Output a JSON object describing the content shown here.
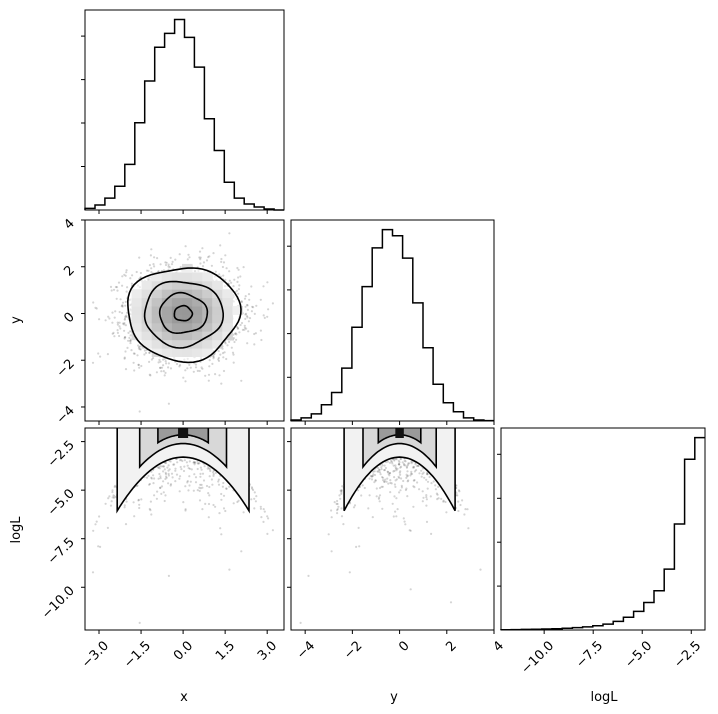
{
  "chart_data": {
    "type": "corner",
    "parameters": [
      "x",
      "y",
      "logL"
    ],
    "axis_labels": {
      "x": "x",
      "y": "y",
      "logL": "logL"
    },
    "ranges": {
      "x": [
        -3.5,
        3.6
      ],
      "y": [
        -4.6,
        4.0
      ],
      "logL": [
        -12.2,
        -1.8
      ]
    },
    "ticks": {
      "x": {
        "values": [
          -3.0,
          -1.5,
          0.0,
          1.5,
          3.0
        ],
        "labels": [
          "−3.0",
          "−1.5",
          "0.0",
          "1.5",
          "3.0"
        ]
      },
      "y": {
        "values": [
          -4,
          -2,
          0,
          2,
          4
        ],
        "labels": [
          "−4",
          "−2",
          "0",
          "2",
          "4"
        ]
      },
      "logL": {
        "values": [
          -10.0,
          -7.5,
          -5.0,
          -2.5
        ],
        "labels": [
          "−10.0",
          "−7.5",
          "−5.0",
          "−2.5"
        ]
      }
    },
    "histograms": {
      "x": {
        "edges": [
          -3.5,
          -3.145,
          -2.79,
          -2.435,
          -2.08,
          -1.725,
          -1.37,
          -1.015,
          -0.66,
          -0.305,
          0.05,
          0.405,
          0.76,
          1.115,
          1.47,
          1.825,
          2.18,
          2.535,
          2.89,
          3.245,
          3.6
        ],
        "counts": [
          0.8,
          2.5,
          6,
          12,
          23,
          44,
          65,
          82,
          89,
          96,
          87,
          72,
          46,
          30,
          14,
          6,
          3,
          1.5,
          0.5,
          0
        ]
      },
      "y": {
        "edges": [
          -4.6,
          -4.17,
          -3.74,
          -3.31,
          -2.88,
          -2.45,
          -2.02,
          -1.59,
          -1.16,
          -0.73,
          -0.3,
          0.13,
          0.56,
          0.99,
          1.42,
          1.85,
          2.28,
          2.71,
          3.14,
          3.57,
          4.0
        ],
        "counts": [
          0.5,
          1.5,
          3.5,
          8,
          14,
          26,
          46,
          66,
          85,
          94,
          91,
          80,
          58,
          36,
          18,
          9,
          4.5,
          1.5,
          0.5,
          0.2
        ]
      },
      "logL": {
        "edges": [
          -12.2,
          -11.68,
          -11.16,
          -10.64,
          -10.12,
          -9.6,
          -9.08,
          -8.56,
          -8.04,
          -7.52,
          -7.0,
          -6.48,
          -5.96,
          -5.44,
          -4.92,
          -4.4,
          -3.88,
          -3.36,
          -2.84,
          -2.32,
          -1.8
        ],
        "counts": [
          0.1,
          0.2,
          0.3,
          0.4,
          0.5,
          0.6,
          0.9,
          1.2,
          1.6,
          2.2,
          3,
          4.4,
          6.5,
          9.5,
          14,
          20,
          31,
          54,
          87,
          98
        ]
      }
    },
    "samples": 10000,
    "contour_levels": [
      0.118,
      0.393,
      0.675,
      0.864
    ]
  }
}
